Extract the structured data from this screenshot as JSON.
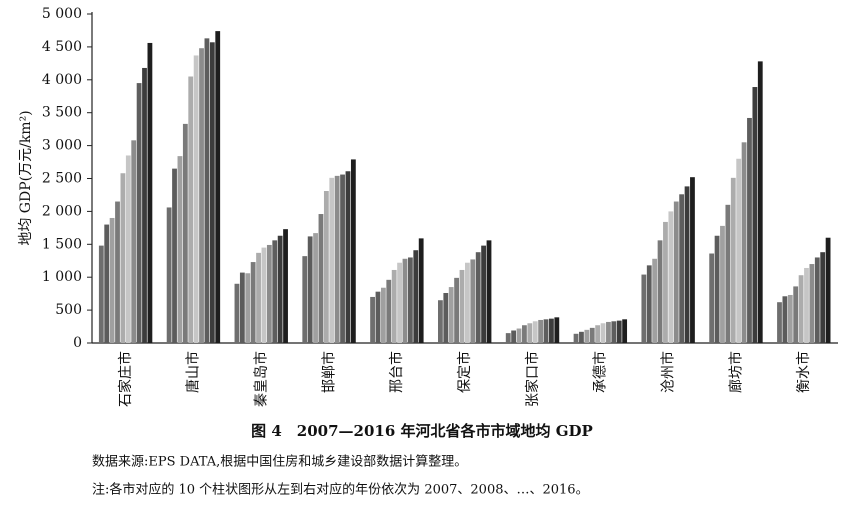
{
  "chart_data": {
    "type": "bar",
    "title": "图 4　2007—2016 年河北省各市市域地均 GDP",
    "ylabel": "地均 GDP(万元/km²)",
    "notes": [
      "数据来源:EPS DATA,根据中国住房和城乡建设部数据计算整理。",
      "注:各市对应的 10 个柱状图形从左到右对应的年份依次为 2007、2008、…、2016。"
    ],
    "categories": [
      "石家庄市",
      "唐山市",
      "秦皇岛市",
      "邯郸市",
      "邢台市",
      "保定市",
      "张家口市",
      "承德市",
      "沧州市",
      "廊坊市",
      "衡水市"
    ],
    "series": [
      {
        "color": "#6e6e6e",
        "values": [
          1480,
          2060,
          900,
          1320,
          700,
          650,
          150,
          140,
          1040,
          1360,
          620
        ]
      },
      {
        "color": "#5c5c5c",
        "values": [
          1800,
          2650,
          1070,
          1620,
          780,
          760,
          190,
          170,
          1180,
          1630,
          710
        ]
      },
      {
        "color": "#a0a0a0",
        "values": [
          1900,
          2840,
          1060,
          1670,
          840,
          850,
          220,
          200,
          1280,
          1780,
          730
        ]
      },
      {
        "color": "#7a7a7a",
        "values": [
          2150,
          3330,
          1230,
          1960,
          960,
          990,
          270,
          230,
          1560,
          2100,
          860
        ]
      },
      {
        "color": "#acacac",
        "values": [
          2580,
          4050,
          1370,
          2310,
          1110,
          1110,
          300,
          270,
          1840,
          2510,
          1030
        ]
      },
      {
        "color": "#c6c6c6",
        "values": [
          2850,
          4370,
          1450,
          2510,
          1220,
          1220,
          330,
          300,
          2000,
          2800,
          1140
        ]
      },
      {
        "color": "#8c8c8c",
        "values": [
          3080,
          4480,
          1490,
          2540,
          1280,
          1270,
          350,
          320,
          2150,
          3050,
          1200
        ]
      },
      {
        "color": "#5e5e5e",
        "values": [
          3950,
          4630,
          1560,
          2560,
          1300,
          1380,
          360,
          330,
          2260,
          3420,
          1300
        ]
      },
      {
        "color": "#3c3c3c",
        "values": [
          4180,
          4570,
          1630,
          2610,
          1410,
          1480,
          370,
          340,
          2380,
          3890,
          1380
        ]
      },
      {
        "color": "#1e1e1e",
        "values": [
          4560,
          4740,
          1730,
          2790,
          1590,
          1560,
          390,
          360,
          2520,
          4280,
          1600
        ]
      }
    ],
    "ylim": [
      0,
      5000
    ],
    "yticks": [
      0,
      500,
      {
        "value": 1000,
        "label": "1 000"
      },
      {
        "value": 1500,
        "label": "1 500"
      },
      {
        "value": 2000,
        "label": "2 000"
      },
      {
        "value": 2500,
        "label": "2 500"
      },
      {
        "value": 3000,
        "label": "3 000"
      },
      {
        "value": 3500,
        "label": "3 500"
      },
      {
        "value": 4000,
        "label": "4 000"
      },
      {
        "value": 4500,
        "label": "4 500"
      },
      {
        "value": 5000,
        "label": "5 000"
      }
    ]
  }
}
